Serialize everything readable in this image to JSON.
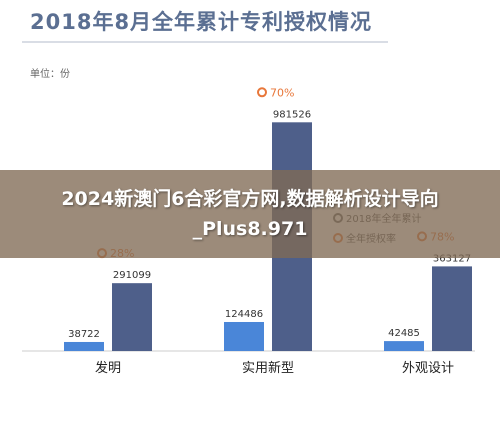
{
  "chart_data": {
    "type": "bar",
    "title": "2018年8月全年累计专利授权情况",
    "unit_label": "单位：份",
    "categories": [
      "发明",
      "实用新型",
      "外观设计"
    ],
    "series": [
      {
        "name": "2018年全年累计",
        "color": "#4a86d8",
        "values": [
          38722,
          124486,
          42485
        ]
      },
      {
        "name": "",
        "color": "#4e5f8a",
        "values": [
          291099,
          981526,
          363127
        ]
      }
    ],
    "rate_series": {
      "name": "全年授权率",
      "color": "#e8773a",
      "labels": [
        "28%",
        "70%",
        "78%"
      ]
    },
    "ylim": [
      0,
      1000000
    ],
    "grid": false
  },
  "banner": {
    "text": "2024新澳门6合彩官方网,数据解析设计导向_Plus8.971"
  }
}
